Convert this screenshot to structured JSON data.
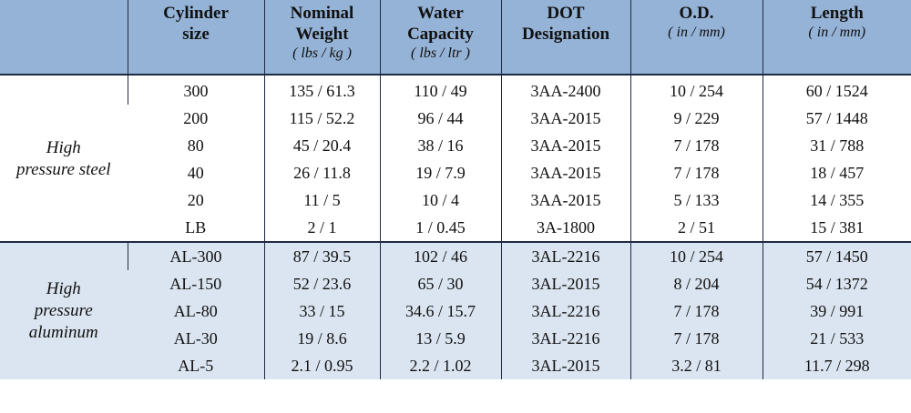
{
  "headers": {
    "group": "",
    "size": {
      "line1": "Cylinder",
      "line2": "size"
    },
    "weight": {
      "line1": "Nominal",
      "line2": "Weight",
      "unit": "( lbs / kg )"
    },
    "water": {
      "line1": "Water",
      "line2": "Capacity",
      "unit": "( lbs / ltr )"
    },
    "dot": {
      "line1": "DOT",
      "line2": "Designation"
    },
    "od": {
      "line1": "O.D.",
      "unit": "( in / mm)"
    },
    "length": {
      "line1": "Length",
      "unit": "( in / mm)"
    }
  },
  "groups": [
    {
      "label_lines": [
        "High",
        "pressure steel"
      ],
      "rows": [
        [
          "300",
          "135 / 61.3",
          "110 / 49",
          "3AA-2400",
          "10 / 254",
          "60 / 1524"
        ],
        [
          "200",
          "115 / 52.2",
          "96 / 44",
          "3AA-2015",
          "9 / 229",
          "57 / 1448"
        ],
        [
          "80",
          "45 / 20.4",
          "38 / 16",
          "3AA-2015",
          "7 / 178",
          "31 / 788"
        ],
        [
          "40",
          "26 / 11.8",
          "19 / 7.9",
          "3AA-2015",
          "7 / 178",
          "18 / 457"
        ],
        [
          "20",
          "11 / 5",
          "10 / 4",
          "3AA-2015",
          "5 / 133",
          "14 / 355"
        ],
        [
          "LB",
          "2 / 1",
          "1 / 0.45",
          "3A-1800",
          "2 / 51",
          "15 / 381"
        ]
      ]
    },
    {
      "label_lines": [
        "High",
        "pressure",
        "aluminum"
      ],
      "rows": [
        [
          "AL-300",
          "87 / 39.5",
          "102 / 46",
          "3AL-2216",
          "10 / 254",
          "57 / 1450"
        ],
        [
          "AL-150",
          "52 / 23.6",
          "65 / 30",
          "3AL-2015",
          "8 / 204",
          "54 / 1372"
        ],
        [
          "AL-80",
          "33 / 15",
          "34.6 / 15.7",
          "3AL-2216",
          "7 / 178",
          "39 / 991"
        ],
        [
          "AL-30",
          "19 / 8.6",
          "13 / 5.9",
          "3AL-2216",
          "7 / 178",
          "21 / 533"
        ],
        [
          "AL-5",
          "2.1 / 0.95",
          "2.2 / 1.02",
          "3AL-2015",
          "3.2 / 81",
          "11.7 / 298"
        ]
      ]
    }
  ],
  "colors": {
    "header_bg": "#95b3d7",
    "aluminum_bg": "#dbe5f1",
    "border": "#1f2a44"
  }
}
